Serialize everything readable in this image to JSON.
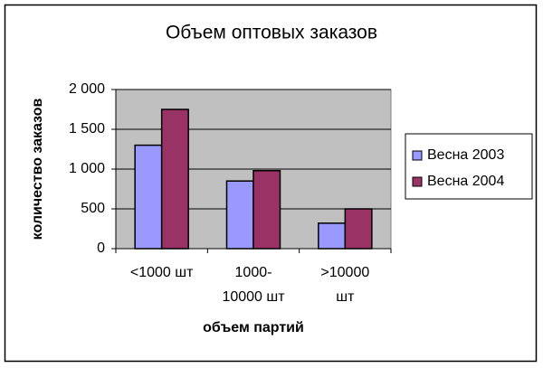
{
  "chart_data": {
    "type": "bar",
    "title": "Объем оптовых заказов",
    "x_label": "объем партий",
    "y_label": "количество заказов",
    "categories": [
      "<1000 шт",
      "1000-10000 шт",
      ">10000 шт"
    ],
    "series": [
      {
        "name": "Весна 2003",
        "color": "#9999ff",
        "values": [
          1300,
          850,
          320
        ]
      },
      {
        "name": "Весна 2004",
        "color": "#993366",
        "values": [
          1750,
          980,
          500
        ]
      }
    ],
    "ylim": [
      0,
      2000
    ],
    "yticks": [
      {
        "value": 0,
        "label": "0"
      },
      {
        "value": 500,
        "label": "500"
      },
      {
        "value": 1000,
        "label": "1 000"
      },
      {
        "value": 1500,
        "label": "1 500"
      },
      {
        "value": 2000,
        "label": "2 000"
      }
    ],
    "grid": true,
    "legend": "right"
  }
}
